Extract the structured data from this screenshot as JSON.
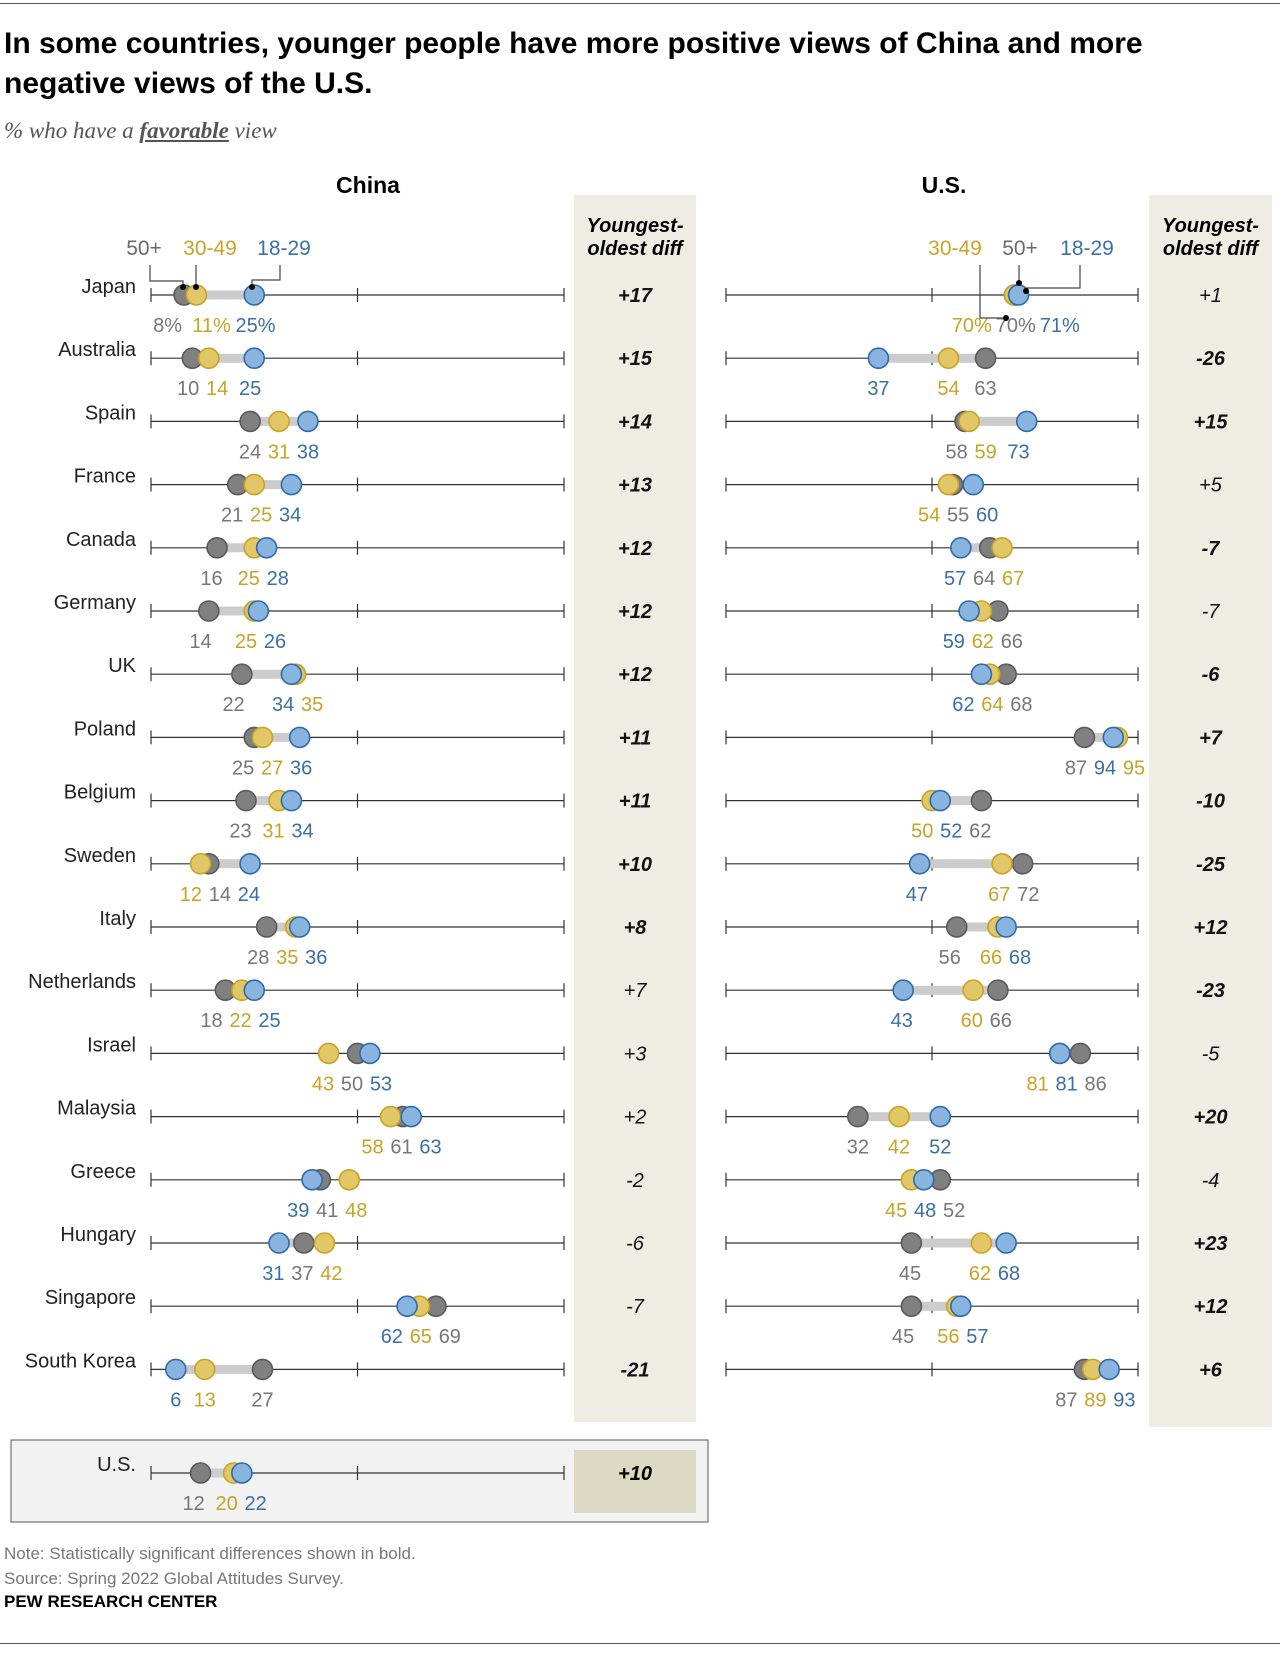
{
  "title": "In some countries, younger people have more positive views of China and more negative views of the U.S.",
  "subtitle": {
    "prefix": "% who have a ",
    "emph": "favorable",
    "suffix": " view"
  },
  "note": "Note: Statistically significant differences shown in bold.",
  "source": "Source: Spring 2022 Global Attitudes Survey.",
  "brand": "PEW RESEARCH CENTER",
  "colors": {
    "age_50_plus": "#808080",
    "age_30_49": "#e2c766",
    "age_18_29": "#8ab4e0",
    "diff_column": "#eeede3"
  },
  "chart_data": {
    "type": "dot",
    "xlim": [
      0,
      100
    ],
    "legend": {
      "age_50_plus": "50+",
      "age_30_49": "30-49",
      "age_18_29": "18-29"
    },
    "diff_header": "Youngest-oldest diff",
    "panels": [
      {
        "title": "China",
        "rows": [
          {
            "country": "Japan",
            "a18_29": 25,
            "a30_49": 11,
            "a50": 8,
            "labels": [
              "8%",
              "11%",
              "25%"
            ],
            "diff": "+17",
            "bold": true
          },
          {
            "country": "Australia",
            "a18_29": 25,
            "a30_49": 14,
            "a50": 10,
            "diff": "+15",
            "bold": true
          },
          {
            "country": "Spain",
            "a18_29": 38,
            "a30_49": 31,
            "a50": 24,
            "diff": "+14",
            "bold": true
          },
          {
            "country": "France",
            "a18_29": 34,
            "a30_49": 25,
            "a50": 21,
            "diff": "+13",
            "bold": true
          },
          {
            "country": "Canada",
            "a18_29": 28,
            "a30_49": 25,
            "a50": 16,
            "diff": "+12",
            "bold": true
          },
          {
            "country": "Germany",
            "a18_29": 26,
            "a30_49": 25,
            "a50": 14,
            "diff": "+12",
            "bold": true
          },
          {
            "country": "UK",
            "a18_29": 34,
            "a30_49": 35,
            "a50": 22,
            "diff": "+12",
            "bold": true
          },
          {
            "country": "Poland",
            "a18_29": 36,
            "a30_49": 27,
            "a50": 25,
            "diff": "+11",
            "bold": true
          },
          {
            "country": "Belgium",
            "a18_29": 34,
            "a30_49": 31,
            "a50": 23,
            "diff": "+11",
            "bold": true
          },
          {
            "country": "Sweden",
            "a18_29": 24,
            "a30_49": 12,
            "a50": 14,
            "diff": "+10",
            "bold": true
          },
          {
            "country": "Italy",
            "a18_29": 36,
            "a30_49": 35,
            "a50": 28,
            "diff": "+8",
            "bold": true
          },
          {
            "country": "Netherlands",
            "a18_29": 25,
            "a30_49": 22,
            "a50": 18,
            "diff": "+7",
            "bold": false
          },
          {
            "country": "Israel",
            "a18_29": 53,
            "a30_49": 43,
            "a50": 50,
            "diff": "+3",
            "bold": false
          },
          {
            "country": "Malaysia",
            "a18_29": 63,
            "a30_49": 58,
            "a50": 61,
            "diff": "+2",
            "bold": false
          },
          {
            "country": "Greece",
            "a18_29": 39,
            "a30_49": 48,
            "a50": 41,
            "diff": "-2",
            "bold": false
          },
          {
            "country": "Hungary",
            "a18_29": 31,
            "a30_49": 42,
            "a50": 37,
            "diff": "-6",
            "bold": false
          },
          {
            "country": "Singapore",
            "a18_29": 62,
            "a30_49": 65,
            "a50": 69,
            "diff": "-7",
            "bold": false
          },
          {
            "country": "South Korea",
            "a18_29": 6,
            "a30_49": 13,
            "a50": 27,
            "diff": "-21",
            "bold": true
          }
        ],
        "us_row": {
          "country": "U.S.",
          "a18_29": 22,
          "a30_49": 20,
          "a50": 12,
          "diff": "+10",
          "bold": true
        }
      },
      {
        "title": "U.S.",
        "rows": [
          {
            "country": "Japan",
            "a18_29": 71,
            "a30_49": 70,
            "a50": 70,
            "labels": [
              "70%",
              "70%",
              "71%"
            ],
            "diff": "+1",
            "bold": false
          },
          {
            "country": "Australia",
            "a18_29": 37,
            "a30_49": 54,
            "a50": 63,
            "diff": "-26",
            "bold": true
          },
          {
            "country": "Spain",
            "a18_29": 73,
            "a30_49": 59,
            "a50": 58,
            "diff": "+15",
            "bold": true
          },
          {
            "country": "France",
            "a18_29": 60,
            "a30_49": 54,
            "a50": 55,
            "diff": "+5",
            "bold": false
          },
          {
            "country": "Canada",
            "a18_29": 57,
            "a30_49": 67,
            "a50": 64,
            "diff": "-7",
            "bold": true
          },
          {
            "country": "Germany",
            "a18_29": 59,
            "a30_49": 62,
            "a50": 66,
            "diff": "-7",
            "bold": false
          },
          {
            "country": "UK",
            "a18_29": 62,
            "a30_49": 64,
            "a50": 68,
            "diff": "-6",
            "bold": true
          },
          {
            "country": "Poland",
            "a18_29": 94,
            "a30_49": 95,
            "a50": 87,
            "diff": "+7",
            "bold": true
          },
          {
            "country": "Belgium",
            "a18_29": 52,
            "a30_49": 50,
            "a50": 62,
            "diff": "-10",
            "bold": true
          },
          {
            "country": "Sweden",
            "a18_29": 47,
            "a30_49": 67,
            "a50": 72,
            "diff": "-25",
            "bold": true
          },
          {
            "country": "Italy",
            "a18_29": 68,
            "a30_49": 66,
            "a50": 56,
            "diff": "+12",
            "bold": true
          },
          {
            "country": "Netherlands",
            "a18_29": 43,
            "a30_49": 60,
            "a50": 66,
            "diff": "-23",
            "bold": true
          },
          {
            "country": "Israel",
            "a18_29": 81,
            "a30_49": 81,
            "a50": 86,
            "diff": "-5",
            "bold": false
          },
          {
            "country": "Malaysia",
            "a18_29": 52,
            "a30_49": 42,
            "a50": 32,
            "diff": "+20",
            "bold": true
          },
          {
            "country": "Greece",
            "a18_29": 48,
            "a30_49": 45,
            "a50": 52,
            "diff": "-4",
            "bold": false
          },
          {
            "country": "Hungary",
            "a18_29": 68,
            "a30_49": 62,
            "a50": 45,
            "diff": "+23",
            "bold": true
          },
          {
            "country": "Singapore",
            "a18_29": 57,
            "a30_49": 56,
            "a50": 45,
            "diff": "+12",
            "bold": true
          },
          {
            "country": "South Korea",
            "a18_29": 93,
            "a30_49": 89,
            "a50": 87,
            "diff": "+6",
            "bold": true
          }
        ]
      }
    ]
  }
}
